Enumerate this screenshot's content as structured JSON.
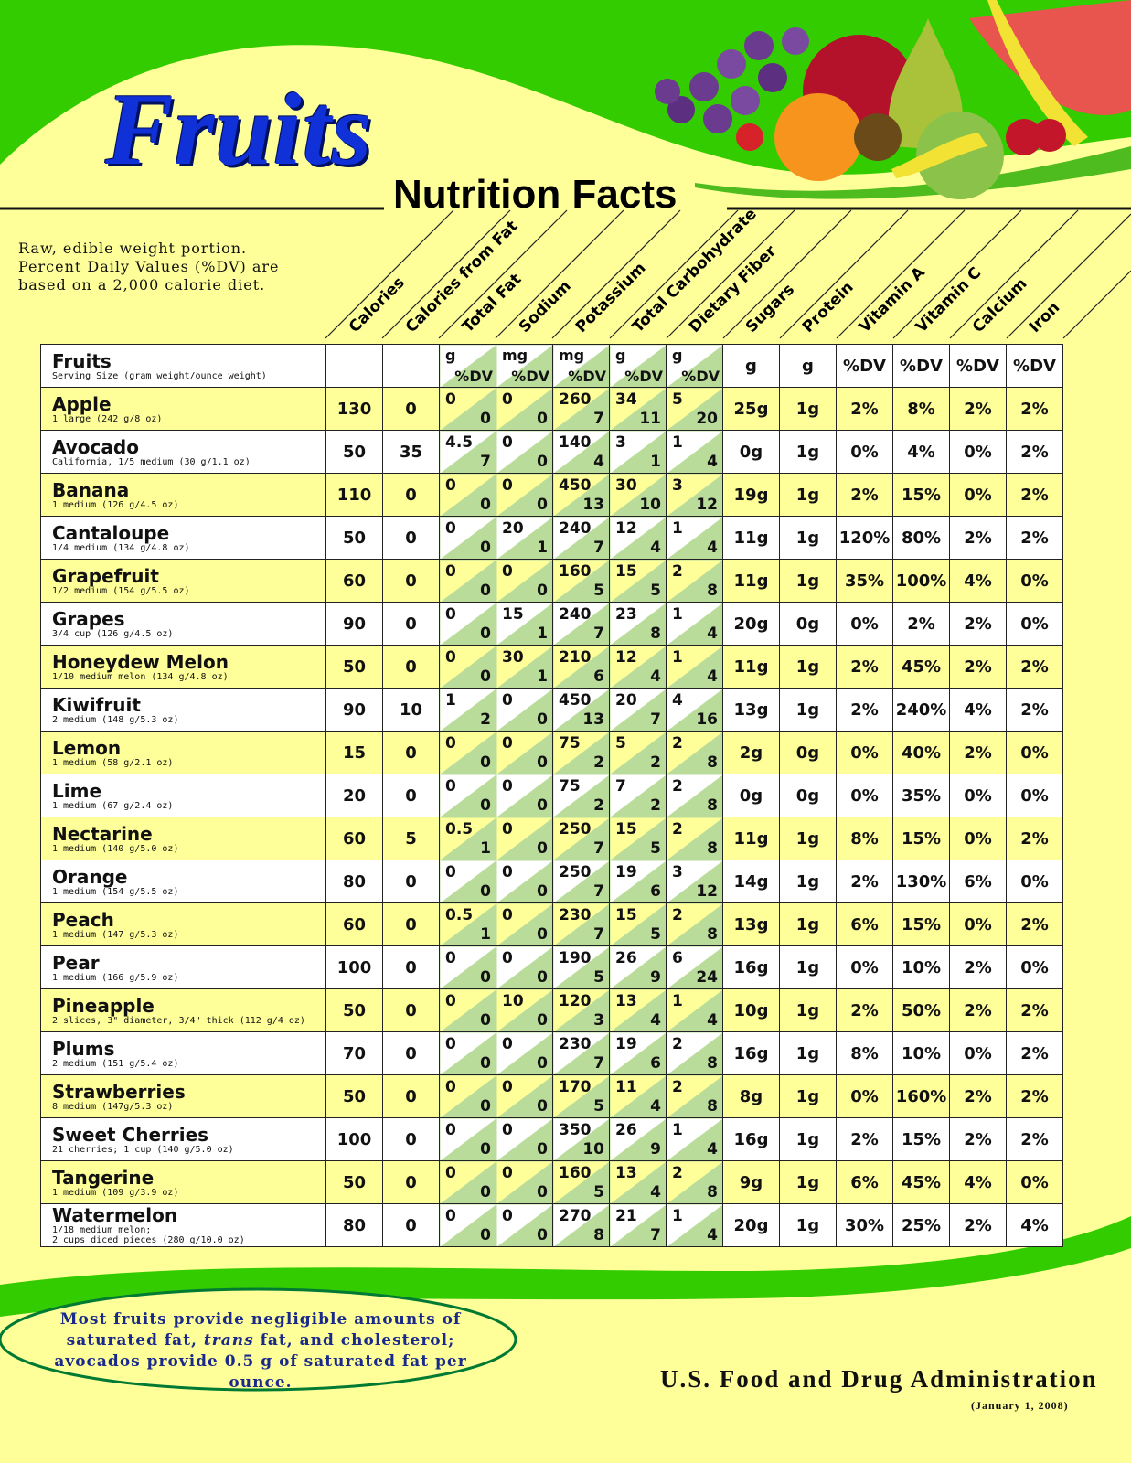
{
  "title": "Fruits",
  "subtitle": "Nutrition Facts",
  "note": "Raw, edible weight portion. Percent Daily Values (%DV) are based on a 2,000 calorie diet.",
  "columns": [
    "Calories",
    "Calories from Fat",
    "Total Fat",
    "Sodium",
    "Potassium",
    "Total Carbohydrate",
    "Dietary Fiber",
    "Sugars",
    "Protein",
    "Vitamin A",
    "Vitamin C",
    "Calcium",
    "Iron"
  ],
  "header_row": {
    "label": "Fruits",
    "sublabel": "Serving Size (gram weight/ounce weight)",
    "units": [
      "",
      "",
      "g|%DV",
      "mg|%DV",
      "mg|%DV",
      "g|%DV",
      "g|%DV",
      "g",
      "g",
      "%DV",
      "%DV",
      "%DV",
      "%DV"
    ]
  },
  "rows": [
    {
      "name": "Apple",
      "serving": "1 large (242 g/8 oz)",
      "cal": "130",
      "calfat": "0",
      "fat": [
        "0",
        "0"
      ],
      "sodium": [
        "0",
        "0"
      ],
      "potassium": [
        "260",
        "7"
      ],
      "carb": [
        "34",
        "11"
      ],
      "fiber": [
        "5",
        "20"
      ],
      "sugars": "25g",
      "protein": "1g",
      "vita": "2%",
      "vitc": "8%",
      "calcium": "2%",
      "iron": "2%"
    },
    {
      "name": "Avocado",
      "serving": "California, 1/5 medium (30 g/1.1 oz)",
      "cal": "50",
      "calfat": "35",
      "fat": [
        "4.5",
        "7"
      ],
      "sodium": [
        "0",
        "0"
      ],
      "potassium": [
        "140",
        "4"
      ],
      "carb": [
        "3",
        "1"
      ],
      "fiber": [
        "1",
        "4"
      ],
      "sugars": "0g",
      "protein": "1g",
      "vita": "0%",
      "vitc": "4%",
      "calcium": "0%",
      "iron": "2%"
    },
    {
      "name": "Banana",
      "serving": "1 medium (126 g/4.5 oz)",
      "cal": "110",
      "calfat": "0",
      "fat": [
        "0",
        "0"
      ],
      "sodium": [
        "0",
        "0"
      ],
      "potassium": [
        "450",
        "13"
      ],
      "carb": [
        "30",
        "10"
      ],
      "fiber": [
        "3",
        "12"
      ],
      "sugars": "19g",
      "protein": "1g",
      "vita": "2%",
      "vitc": "15%",
      "calcium": "0%",
      "iron": "2%"
    },
    {
      "name": "Cantaloupe",
      "serving": "1/4 medium (134 g/4.8 oz)",
      "cal": "50",
      "calfat": "0",
      "fat": [
        "0",
        "0"
      ],
      "sodium": [
        "20",
        "1"
      ],
      "potassium": [
        "240",
        "7"
      ],
      "carb": [
        "12",
        "4"
      ],
      "fiber": [
        "1",
        "4"
      ],
      "sugars": "11g",
      "protein": "1g",
      "vita": "120%",
      "vitc": "80%",
      "calcium": "2%",
      "iron": "2%"
    },
    {
      "name": "Grapefruit",
      "serving": "1/2 medium (154 g/5.5 oz)",
      "cal": "60",
      "calfat": "0",
      "fat": [
        "0",
        "0"
      ],
      "sodium": [
        "0",
        "0"
      ],
      "potassium": [
        "160",
        "5"
      ],
      "carb": [
        "15",
        "5"
      ],
      "fiber": [
        "2",
        "8"
      ],
      "sugars": "11g",
      "protein": "1g",
      "vita": "35%",
      "vitc": "100%",
      "calcium": "4%",
      "iron": "0%"
    },
    {
      "name": "Grapes",
      "serving": "3/4 cup (126 g/4.5 oz)",
      "cal": "90",
      "calfat": "0",
      "fat": [
        "0",
        "0"
      ],
      "sodium": [
        "15",
        "1"
      ],
      "potassium": [
        "240",
        "7"
      ],
      "carb": [
        "23",
        "8"
      ],
      "fiber": [
        "1",
        "4"
      ],
      "sugars": "20g",
      "protein": "0g",
      "vita": "0%",
      "vitc": "2%",
      "calcium": "2%",
      "iron": "0%"
    },
    {
      "name": "Honeydew Melon",
      "serving": "1/10 medium melon (134 g/4.8 oz)",
      "cal": "50",
      "calfat": "0",
      "fat": [
        "0",
        "0"
      ],
      "sodium": [
        "30",
        "1"
      ],
      "potassium": [
        "210",
        "6"
      ],
      "carb": [
        "12",
        "4"
      ],
      "fiber": [
        "1",
        "4"
      ],
      "sugars": "11g",
      "protein": "1g",
      "vita": "2%",
      "vitc": "45%",
      "calcium": "2%",
      "iron": "2%"
    },
    {
      "name": "Kiwifruit",
      "serving": "2 medium (148 g/5.3 oz)",
      "cal": "90",
      "calfat": "10",
      "fat": [
        "1",
        "2"
      ],
      "sodium": [
        "0",
        "0"
      ],
      "potassium": [
        "450",
        "13"
      ],
      "carb": [
        "20",
        "7"
      ],
      "fiber": [
        "4",
        "16"
      ],
      "sugars": "13g",
      "protein": "1g",
      "vita": "2%",
      "vitc": "240%",
      "calcium": "4%",
      "iron": "2%"
    },
    {
      "name": "Lemon",
      "serving": "1 medium (58 g/2.1 oz)",
      "cal": "15",
      "calfat": "0",
      "fat": [
        "0",
        "0"
      ],
      "sodium": [
        "0",
        "0"
      ],
      "potassium": [
        "75",
        "2"
      ],
      "carb": [
        "5",
        "2"
      ],
      "fiber": [
        "2",
        "8"
      ],
      "sugars": "2g",
      "protein": "0g",
      "vita": "0%",
      "vitc": "40%",
      "calcium": "2%",
      "iron": "0%"
    },
    {
      "name": "Lime",
      "serving": "1 medium (67 g/2.4 oz)",
      "cal": "20",
      "calfat": "0",
      "fat": [
        "0",
        "0"
      ],
      "sodium": [
        "0",
        "0"
      ],
      "potassium": [
        "75",
        "2"
      ],
      "carb": [
        "7",
        "2"
      ],
      "fiber": [
        "2",
        "8"
      ],
      "sugars": "0g",
      "protein": "0g",
      "vita": "0%",
      "vitc": "35%",
      "calcium": "0%",
      "iron": "0%"
    },
    {
      "name": "Nectarine",
      "serving": "1 medium (140 g/5.0 oz)",
      "cal": "60",
      "calfat": "5",
      "fat": [
        "0.5",
        "1"
      ],
      "sodium": [
        "0",
        "0"
      ],
      "potassium": [
        "250",
        "7"
      ],
      "carb": [
        "15",
        "5"
      ],
      "fiber": [
        "2",
        "8"
      ],
      "sugars": "11g",
      "protein": "1g",
      "vita": "8%",
      "vitc": "15%",
      "calcium": "0%",
      "iron": "2%"
    },
    {
      "name": "Orange",
      "serving": "1 medium (154 g/5.5 oz)",
      "cal": "80",
      "calfat": "0",
      "fat": [
        "0",
        "0"
      ],
      "sodium": [
        "0",
        "0"
      ],
      "potassium": [
        "250",
        "7"
      ],
      "carb": [
        "19",
        "6"
      ],
      "fiber": [
        "3",
        "12"
      ],
      "sugars": "14g",
      "protein": "1g",
      "vita": "2%",
      "vitc": "130%",
      "calcium": "6%",
      "iron": "0%"
    },
    {
      "name": "Peach",
      "serving": "1 medium (147 g/5.3 oz)",
      "cal": "60",
      "calfat": "0",
      "fat": [
        "0.5",
        "1"
      ],
      "sodium": [
        "0",
        "0"
      ],
      "potassium": [
        "230",
        "7"
      ],
      "carb": [
        "15",
        "5"
      ],
      "fiber": [
        "2",
        "8"
      ],
      "sugars": "13g",
      "protein": "1g",
      "vita": "6%",
      "vitc": "15%",
      "calcium": "0%",
      "iron": "2%"
    },
    {
      "name": "Pear",
      "serving": "1 medium (166 g/5.9 oz)",
      "cal": "100",
      "calfat": "0",
      "fat": [
        "0",
        "0"
      ],
      "sodium": [
        "0",
        "0"
      ],
      "potassium": [
        "190",
        "5"
      ],
      "carb": [
        "26",
        "9"
      ],
      "fiber": [
        "6",
        "24"
      ],
      "sugars": "16g",
      "protein": "1g",
      "vita": "0%",
      "vitc": "10%",
      "calcium": "2%",
      "iron": "0%"
    },
    {
      "name": "Pineapple",
      "serving": "2 slices, 3\" diameter, 3/4\" thick (112 g/4 oz)",
      "cal": "50",
      "calfat": "0",
      "fat": [
        "0",
        "0"
      ],
      "sodium": [
        "10",
        "0"
      ],
      "potassium": [
        "120",
        "3"
      ],
      "carb": [
        "13",
        "4"
      ],
      "fiber": [
        "1",
        "4"
      ],
      "sugars": "10g",
      "protein": "1g",
      "vita": "2%",
      "vitc": "50%",
      "calcium": "2%",
      "iron": "2%"
    },
    {
      "name": "Plums",
      "serving": "2 medium (151 g/5.4 oz)",
      "cal": "70",
      "calfat": "0",
      "fat": [
        "0",
        "0"
      ],
      "sodium": [
        "0",
        "0"
      ],
      "potassium": [
        "230",
        "7"
      ],
      "carb": [
        "19",
        "6"
      ],
      "fiber": [
        "2",
        "8"
      ],
      "sugars": "16g",
      "protein": "1g",
      "vita": "8%",
      "vitc": "10%",
      "calcium": "0%",
      "iron": "2%"
    },
    {
      "name": "Strawberries",
      "serving": "8 medium (147g/5.3 oz)",
      "cal": "50",
      "calfat": "0",
      "fat": [
        "0",
        "0"
      ],
      "sodium": [
        "0",
        "0"
      ],
      "potassium": [
        "170",
        "5"
      ],
      "carb": [
        "11",
        "4"
      ],
      "fiber": [
        "2",
        "8"
      ],
      "sugars": "8g",
      "protein": "1g",
      "vita": "0%",
      "vitc": "160%",
      "calcium": "2%",
      "iron": "2%"
    },
    {
      "name": "Sweet Cherries",
      "serving": "21 cherries; 1 cup (140 g/5.0 oz)",
      "cal": "100",
      "calfat": "0",
      "fat": [
        "0",
        "0"
      ],
      "sodium": [
        "0",
        "0"
      ],
      "potassium": [
        "350",
        "10"
      ],
      "carb": [
        "26",
        "9"
      ],
      "fiber": [
        "1",
        "4"
      ],
      "sugars": "16g",
      "protein": "1g",
      "vita": "2%",
      "vitc": "15%",
      "calcium": "2%",
      "iron": "2%"
    },
    {
      "name": "Tangerine",
      "serving": "1 medium (109 g/3.9 oz)",
      "cal": "50",
      "calfat": "0",
      "fat": [
        "0",
        "0"
      ],
      "sodium": [
        "0",
        "0"
      ],
      "potassium": [
        "160",
        "5"
      ],
      "carb": [
        "13",
        "4"
      ],
      "fiber": [
        "2",
        "8"
      ],
      "sugars": "9g",
      "protein": "1g",
      "vita": "6%",
      "vitc": "45%",
      "calcium": "4%",
      "iron": "0%"
    },
    {
      "name": "Watermelon",
      "serving": "1/18 medium melon;\n2 cups diced pieces (280 g/10.0 oz)",
      "cal": "80",
      "calfat": "0",
      "fat": [
        "0",
        "0"
      ],
      "sodium": [
        "0",
        "0"
      ],
      "potassium": [
        "270",
        "8"
      ],
      "carb": [
        "21",
        "7"
      ],
      "fiber": [
        "1",
        "4"
      ],
      "sugars": "20g",
      "protein": "1g",
      "vita": "30%",
      "vitc": "25%",
      "calcium": "2%",
      "iron": "4%"
    }
  ],
  "footer_note_parts": [
    "Most fruits provide negligible amounts of saturated fat, ",
    "trans",
    " fat, and cholesterol; avocados provide 0.5 g of saturated fat per ounce."
  ],
  "agency": "U.S. Food and Drug Administration",
  "date": "(January 1, 2008)",
  "colors": {
    "green": "#33cc00",
    "light_yellow": "#ffff99",
    "title_blue": "#1030d8",
    "cell_green": "#b9dc9a"
  }
}
